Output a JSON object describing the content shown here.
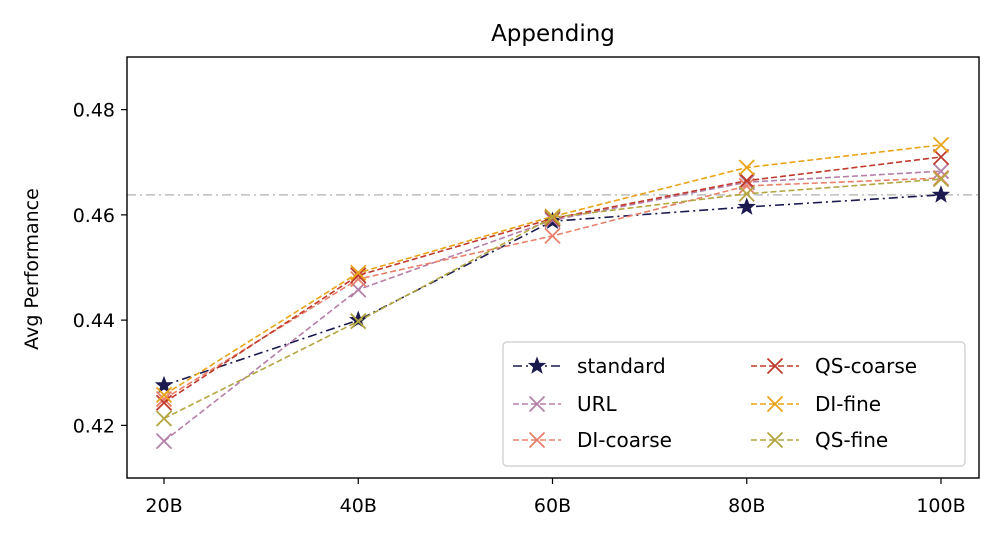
{
  "chart_data": {
    "type": "line",
    "title": "Appending",
    "xlabel": "",
    "ylabel": "Avg Performance",
    "categories": [
      "20B",
      "40B",
      "60B",
      "80B",
      "100B"
    ],
    "yticks": [
      "0.42",
      "0.44",
      "0.46",
      "0.48"
    ],
    "ytick_values": [
      0.42,
      0.44,
      0.46,
      0.48
    ],
    "ylim": [
      0.41,
      0.49
    ],
    "reference_line": 0.4638,
    "legend_position": "lower-right",
    "series": [
      {
        "name": "standard",
        "color": "#1a1a4e",
        "marker": "star",
        "dash": "dashdot",
        "values": [
          0.4276,
          0.44,
          0.4588,
          0.4615,
          0.4638
        ]
      },
      {
        "name": "URL",
        "color": "#b57fa8",
        "marker": "x",
        "dash": "dashed",
        "values": [
          0.417,
          0.4458,
          0.459,
          0.4662,
          0.4683
        ]
      },
      {
        "name": "DI-coarse",
        "color": "#e8806b",
        "marker": "x",
        "dash": "dashed",
        "values": [
          0.425,
          0.4478,
          0.456,
          0.4655,
          0.467
        ]
      },
      {
        "name": "QS-coarse",
        "color": "#c0392b",
        "marker": "x",
        "dash": "dashed",
        "values": [
          0.4243,
          0.4485,
          0.4593,
          0.4665,
          0.471
        ]
      },
      {
        "name": "DI-fine",
        "color": "#e8a317",
        "marker": "x",
        "dash": "dashed",
        "values": [
          0.4258,
          0.449,
          0.4597,
          0.469,
          0.4733
        ]
      },
      {
        "name": "QS-fine",
        "color": "#b3a640",
        "marker": "x",
        "dash": "dashed",
        "values": [
          0.4213,
          0.4398,
          0.4595,
          0.464,
          0.4668
        ]
      }
    ]
  }
}
